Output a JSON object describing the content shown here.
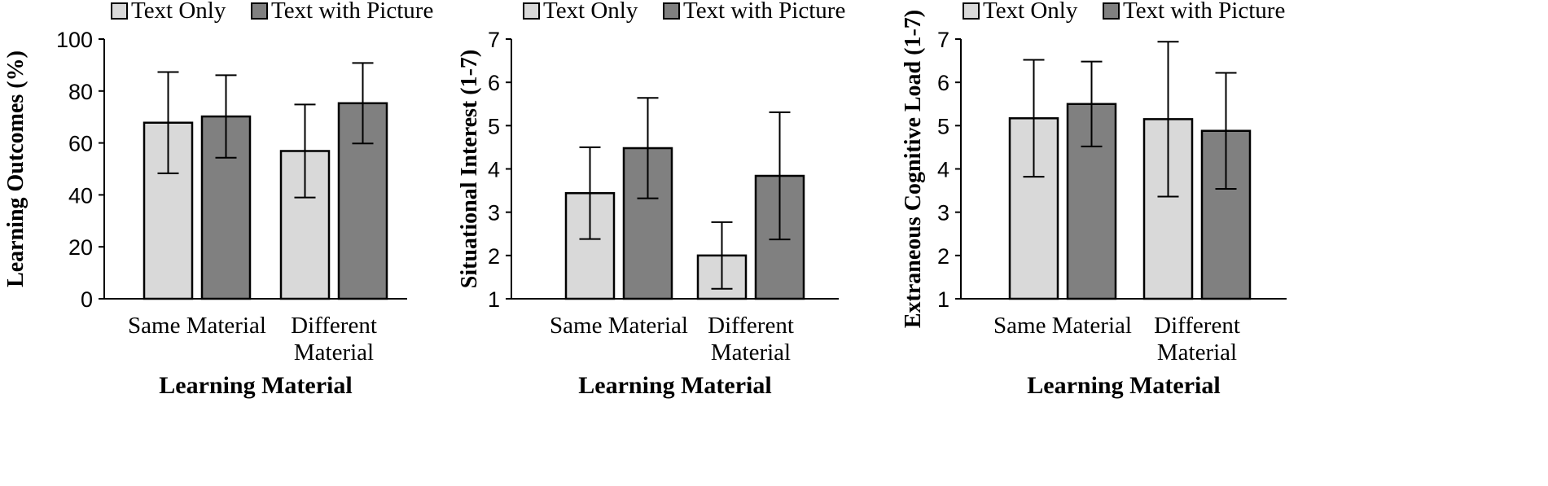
{
  "chart_data": [
    {
      "type": "bar",
      "categories": [
        [
          "Same Material"
        ],
        [
          "Different",
          "Material"
        ]
      ],
      "series": [
        {
          "name": "Text Only",
          "values": [
            67.8,
            56.9
          ],
          "errors": [
            19.5,
            17.9
          ],
          "color": "#d9d9d9"
        },
        {
          "name": "Text with Picture",
          "values": [
            70.2,
            75.3
          ],
          "errors": [
            15.9,
            15.5
          ],
          "color": "#808080"
        }
      ],
      "xlabel": "Learning Material",
      "ylabel": "Learning Outcomes (%)",
      "ylim": [
        0,
        100
      ],
      "yticks": [
        0,
        20,
        40,
        60,
        80,
        100
      ],
      "legend": "top",
      "grid": false
    },
    {
      "type": "bar",
      "categories": [
        [
          "Same Material"
        ],
        [
          "Different",
          "Material"
        ]
      ],
      "series": [
        {
          "name": "Text Only",
          "values": [
            3.44,
            2.0
          ],
          "errors": [
            1.06,
            0.77
          ],
          "color": "#d9d9d9"
        },
        {
          "name": "Text with Picture",
          "values": [
            4.48,
            3.84
          ],
          "errors": [
            1.16,
            1.47
          ],
          "color": "#808080"
        }
      ],
      "xlabel": "Learning Material",
      "ylabel": "Situational Interest (1-7)",
      "ylim": [
        1,
        7
      ],
      "yticks": [
        1,
        2,
        3,
        4,
        5,
        6,
        7
      ],
      "legend": "top",
      "grid": false
    },
    {
      "type": "bar",
      "categories": [
        [
          "Same Material"
        ],
        [
          "Different",
          "Material"
        ]
      ],
      "series": [
        {
          "name": "Text Only",
          "values": [
            5.17,
            5.15
          ],
          "errors": [
            1.35,
            1.79
          ],
          "color": "#d9d9d9"
        },
        {
          "name": "Text with Picture",
          "values": [
            5.5,
            4.88
          ],
          "errors": [
            0.98,
            1.34
          ],
          "color": "#808080"
        }
      ],
      "xlabel": "Learning Material",
      "ylabel": "Extraneous Cognitive Load (1-7)",
      "ylim": [
        1,
        7
      ],
      "yticks": [
        1,
        2,
        3,
        4,
        5,
        6,
        7
      ],
      "legend": "top",
      "grid": false
    }
  ]
}
